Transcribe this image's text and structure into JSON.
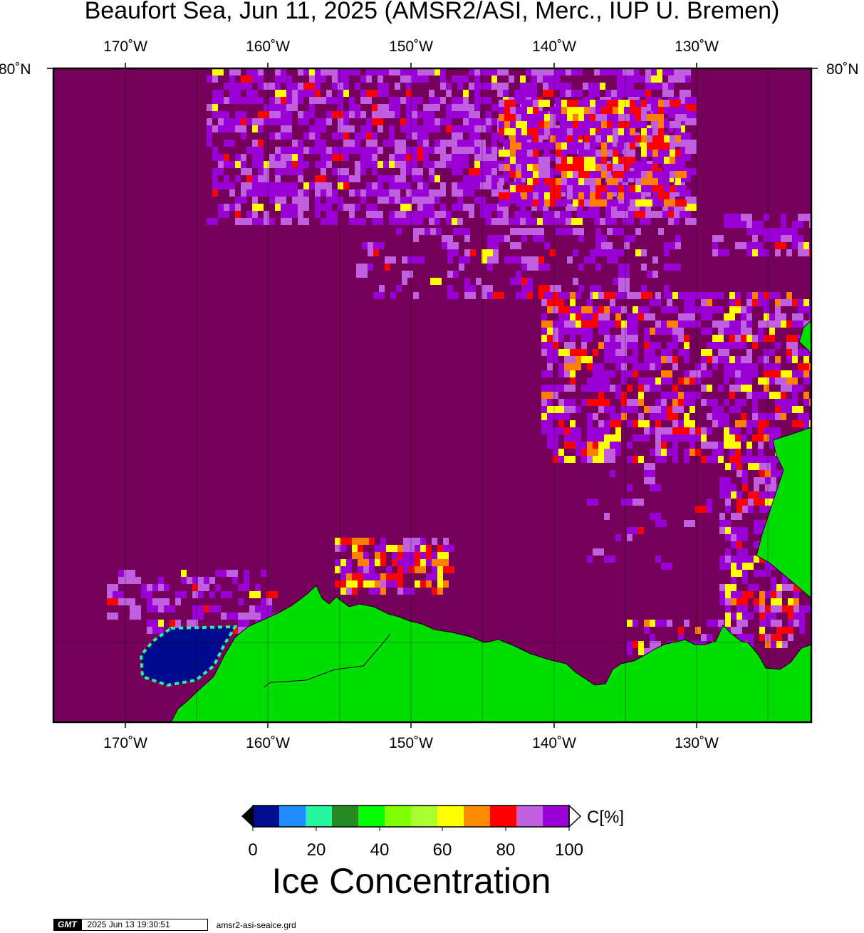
{
  "title": "Beaufort Sea, Jun 11, 2025 (AMSR2/ASI, Merc., IUP U. Bremen)",
  "map": {
    "lon_labels": [
      "170˚W",
      "160˚W",
      "150˚W",
      "140˚W",
      "130˚W"
    ],
    "lat_label_left": "80˚N",
    "lat_label_right": "80˚N",
    "colors": {
      "open_ocean_100": "#74005a",
      "ice_90_100": "#9a00d6",
      "ice_85_95": "#c060e0",
      "ice_80_90": "#ff0000",
      "ice_75_85": "#ff8000",
      "ice_70_80": "#ffff00",
      "open_water_0": "#000a8c",
      "land": "#00dd00"
    }
  },
  "colorbar": {
    "title": "Ice Concentration",
    "unit": "C[%]",
    "tick_labels": [
      "0",
      "20",
      "40",
      "60",
      "80",
      "100"
    ],
    "segments": [
      "#000c8e",
      "#1e8cff",
      "#23f5a0",
      "#228b22",
      "#00ff00",
      "#7fff00",
      "#aaff33",
      "#ffff00",
      "#ff8c00",
      "#ff0000",
      "#c060e0",
      "#9a00d6"
    ]
  },
  "footer": {
    "logo": "GMT",
    "timestamp": "2025 Jun 13 19:30:51",
    "filename": "amsr2-asi-seaice.grd"
  }
}
